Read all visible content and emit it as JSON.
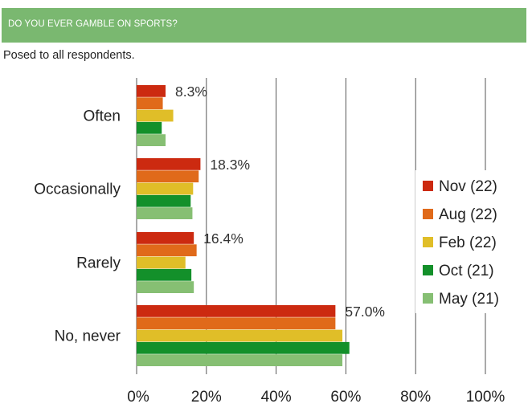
{
  "header": {
    "title": "DO YOU EVER GAMBLE ON SPORTS?"
  },
  "subtitle": "Posed to all respondents.",
  "colors": {
    "header_bg": "#7ab870",
    "grid": "#555555"
  },
  "chart_data": {
    "type": "bar",
    "orientation": "horizontal",
    "categories": [
      "Often",
      "Occasionally",
      "Rarely",
      "No, never"
    ],
    "series": [
      {
        "name": "Nov (22)",
        "color": "#cc2a10",
        "values": [
          8.3,
          18.3,
          16.4,
          57.0
        ]
      },
      {
        "name": "Aug (22)",
        "color": "#e06a1a",
        "values": [
          7.5,
          17.8,
          17.2,
          57.0
        ]
      },
      {
        "name": "Feb (22)",
        "color": "#e0be28",
        "values": [
          10.5,
          16.2,
          14.0,
          59.0
        ]
      },
      {
        "name": "Oct (21)",
        "color": "#13902a",
        "values": [
          7.2,
          15.5,
          15.7,
          61.0
        ]
      },
      {
        "name": "May (21)",
        "color": "#86bf73",
        "values": [
          8.3,
          16.0,
          16.4,
          59.0
        ]
      }
    ],
    "data_labels": [
      "8.3%",
      "18.3%",
      "16.4%",
      "57.0%"
    ],
    "xlim": [
      0,
      100
    ],
    "ticks": [
      "0%",
      "20%",
      "40%",
      "60%",
      "80%",
      "100%"
    ],
    "tick_values": [
      0,
      20,
      40,
      60,
      80,
      100
    ],
    "grid": true,
    "legend_position": "right"
  }
}
